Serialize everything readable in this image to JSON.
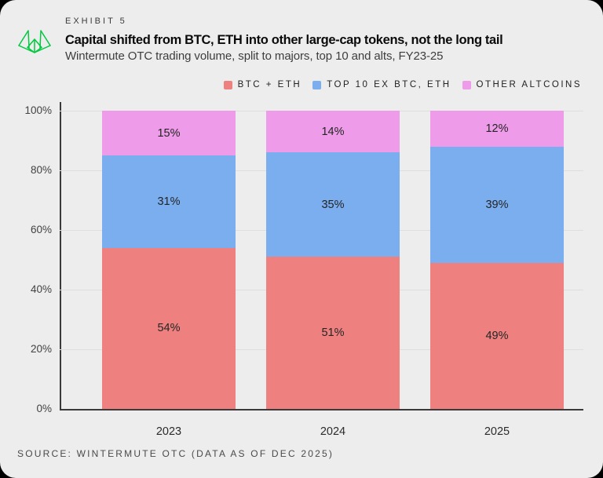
{
  "page": {
    "card_background": "#EDEDED",
    "outer_background": "#000000"
  },
  "header": {
    "exhibit_label": "EXHIBIT 5",
    "title": "Capital shifted from BTC, ETH into other large-cap tokens, not the long tail",
    "subtitle": "Wintermute OTC trading volume, split to majors, top 10 and alts, FY23-25",
    "logo_icon": "wintermute-logo",
    "logo_color": "#00C93F"
  },
  "chart_data": {
    "type": "bar",
    "stacked": true,
    "orientation": "vertical",
    "categories": [
      "2023",
      "2024",
      "2025"
    ],
    "series": [
      {
        "name": "BTC + ETH",
        "values": [
          54,
          51,
          49
        ],
        "color": "#EE817F"
      },
      {
        "name": "TOP 10 EX BTC, ETH",
        "values": [
          31,
          35,
          39
        ],
        "color": "#7BAEEF"
      },
      {
        "name": "OTHER ALTCOINS",
        "values": [
          15,
          14,
          12
        ],
        "color": "#EE9CE9"
      }
    ],
    "value_suffix": "%",
    "y_ticks": [
      "0%",
      "20%",
      "40%",
      "60%",
      "80%",
      "100%"
    ],
    "ylim": [
      0,
      100
    ],
    "grid": true,
    "gridline_color": "#DEDEDE",
    "axis_color": "#3A3A3A",
    "legend_position": "top-right"
  },
  "footer": {
    "source": "SOURCE: WINTERMUTE OTC (DATA AS OF DEC 2025)"
  }
}
